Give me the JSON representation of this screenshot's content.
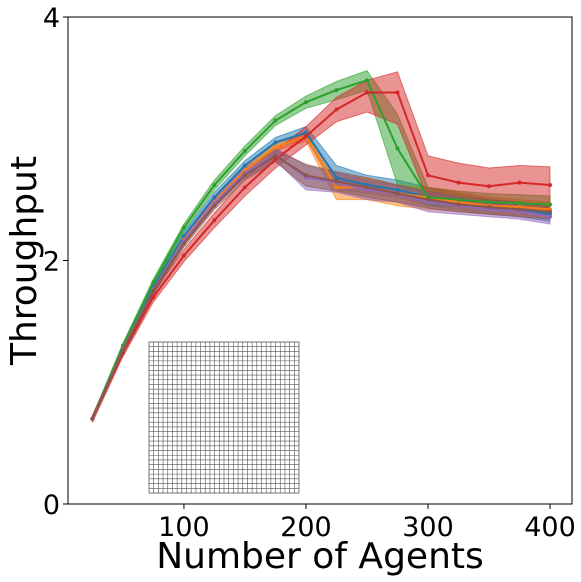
{
  "chart_data": {
    "type": "line",
    "xlabel": "Number of Agents",
    "ylabel": "Throughput",
    "xlim": [
      5,
      418
    ],
    "ylim": [
      0,
      4
    ],
    "xticks": [
      100,
      200,
      300,
      400
    ],
    "xtick_labels": [
      "100",
      "200",
      "300",
      "400"
    ],
    "yticks": [
      0,
      2,
      4
    ],
    "ytick_labels": [
      "0",
      "2",
      "4"
    ],
    "grid": false,
    "legend": "none",
    "x": [
      25,
      50,
      75,
      100,
      125,
      150,
      175,
      200,
      225,
      250,
      275,
      300,
      325,
      350,
      375,
      400
    ],
    "series": [
      {
        "color": "#1f77b4",
        "values": [
          0.7,
          1.28,
          1.78,
          2.2,
          2.52,
          2.78,
          2.97,
          3.05,
          2.68,
          2.62,
          2.58,
          2.52,
          2.48,
          2.44,
          2.42,
          2.38
        ],
        "low": [
          0.68,
          1.26,
          1.75,
          2.17,
          2.48,
          2.74,
          2.93,
          3.0,
          2.58,
          2.55,
          2.52,
          2.45,
          2.42,
          2.38,
          2.36,
          2.32
        ],
        "high": [
          0.72,
          1.3,
          1.81,
          2.23,
          2.56,
          2.82,
          3.01,
          3.1,
          2.78,
          2.7,
          2.66,
          2.6,
          2.55,
          2.5,
          2.48,
          2.44
        ]
      },
      {
        "color": "#ff7f0e",
        "values": [
          0.7,
          1.27,
          1.76,
          2.17,
          2.48,
          2.74,
          2.93,
          3.02,
          2.6,
          2.6,
          2.55,
          2.52,
          2.48,
          2.45,
          2.44,
          2.42
        ],
        "low": [
          0.68,
          1.25,
          1.73,
          2.14,
          2.45,
          2.71,
          2.9,
          2.98,
          2.5,
          2.5,
          2.45,
          2.42,
          2.4,
          2.38,
          2.37,
          2.35
        ],
        "high": [
          0.72,
          1.29,
          1.79,
          2.2,
          2.51,
          2.77,
          2.96,
          3.06,
          2.68,
          2.68,
          2.62,
          2.6,
          2.56,
          2.52,
          2.5,
          2.48
        ]
      },
      {
        "color": "#2ca02c",
        "values": [
          0.7,
          1.3,
          1.82,
          2.27,
          2.62,
          2.9,
          3.15,
          3.3,
          3.4,
          3.48,
          2.92,
          2.52,
          2.5,
          2.48,
          2.47,
          2.46
        ],
        "low": [
          0.68,
          1.28,
          1.79,
          2.24,
          2.58,
          2.86,
          3.11,
          3.25,
          3.32,
          3.4,
          2.62,
          2.45,
          2.44,
          2.42,
          2.41,
          2.4
        ],
        "high": [
          0.72,
          1.32,
          1.85,
          2.3,
          2.66,
          2.94,
          3.19,
          3.35,
          3.47,
          3.56,
          3.2,
          2.6,
          2.57,
          2.55,
          2.54,
          2.53
        ]
      },
      {
        "color": "#d62728",
        "values": [
          0.7,
          1.24,
          1.7,
          2.04,
          2.33,
          2.6,
          2.83,
          3.02,
          3.24,
          3.38,
          3.38,
          2.7,
          2.64,
          2.61,
          2.64,
          2.62
        ],
        "low": [
          0.67,
          1.21,
          1.66,
          1.99,
          2.27,
          2.53,
          2.76,
          2.95,
          3.14,
          3.22,
          3.12,
          2.5,
          2.46,
          2.42,
          2.44,
          2.42
        ],
        "high": [
          0.73,
          1.27,
          1.74,
          2.09,
          2.39,
          2.67,
          2.9,
          3.1,
          3.34,
          3.48,
          3.55,
          2.86,
          2.8,
          2.76,
          2.78,
          2.77
        ]
      },
      {
        "color": "#9467bd",
        "values": [
          0.7,
          1.27,
          1.76,
          2.16,
          2.47,
          2.72,
          2.87,
          2.68,
          2.64,
          2.58,
          2.55,
          2.48,
          2.45,
          2.42,
          2.4,
          2.36
        ],
        "low": [
          0.68,
          1.25,
          1.73,
          2.13,
          2.44,
          2.68,
          2.82,
          2.58,
          2.56,
          2.5,
          2.48,
          2.4,
          2.38,
          2.36,
          2.34,
          2.3
        ],
        "high": [
          0.72,
          1.29,
          1.79,
          2.19,
          2.5,
          2.76,
          2.92,
          2.78,
          2.72,
          2.66,
          2.62,
          2.56,
          2.52,
          2.48,
          2.46,
          2.42
        ]
      },
      {
        "color": "#8c564b",
        "values": [
          0.7,
          1.26,
          1.75,
          2.14,
          2.45,
          2.7,
          2.86,
          2.7,
          2.65,
          2.6,
          2.55,
          2.5,
          2.46,
          2.44,
          2.42,
          2.4
        ],
        "low": [
          0.68,
          1.24,
          1.72,
          2.11,
          2.42,
          2.66,
          2.81,
          2.61,
          2.57,
          2.52,
          2.48,
          2.43,
          2.4,
          2.38,
          2.36,
          2.34
        ],
        "high": [
          0.72,
          1.28,
          1.78,
          2.17,
          2.48,
          2.74,
          2.91,
          2.79,
          2.73,
          2.68,
          2.62,
          2.57,
          2.52,
          2.5,
          2.48,
          2.46
        ]
      }
    ],
    "inset": {
      "description": "grid map",
      "columns": 32,
      "rows": 32,
      "line_color": "#555555"
    }
  }
}
